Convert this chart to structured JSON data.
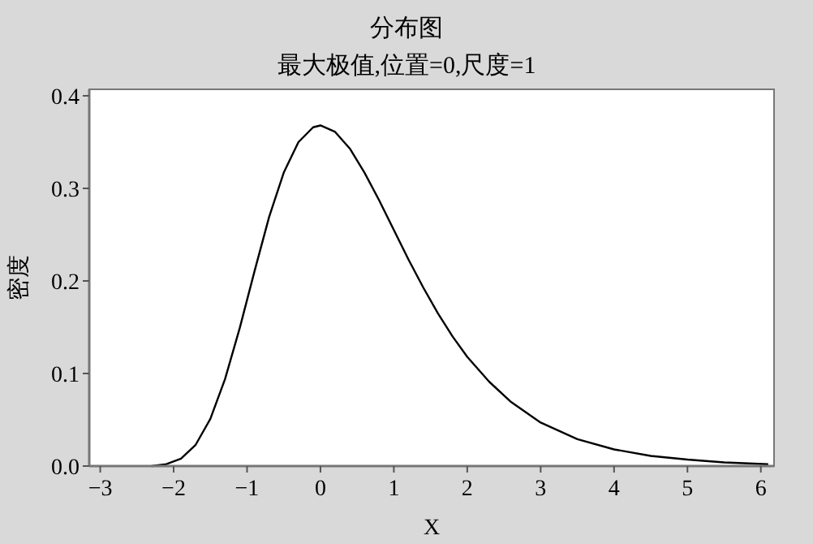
{
  "chart_data": {
    "type": "line",
    "title": "分布图",
    "subtitle": "最大极值,位置=0,尺度=1",
    "xlabel": "X",
    "ylabel": "密度",
    "x": [
      -2.3,
      -2.1,
      -1.9,
      -1.7,
      -1.5,
      -1.3,
      -1.1,
      -0.9,
      -0.7,
      -0.5,
      -0.3,
      -0.1,
      0,
      0.2,
      0.4,
      0.6,
      0.8,
      1.0,
      1.2,
      1.4,
      1.6,
      1.8,
      2.0,
      2.3,
      2.6,
      3.0,
      3.5,
      4.0,
      4.5,
      5.0,
      5.5,
      6.1
    ],
    "series": [
      {
        "color": "#000000",
        "values": [
          0.0,
          0.002,
          0.008,
          0.023,
          0.051,
          0.094,
          0.149,
          0.21,
          0.269,
          0.317,
          0.35,
          0.366,
          0.368,
          0.361,
          0.343,
          0.317,
          0.287,
          0.255,
          0.223,
          0.193,
          0.165,
          0.14,
          0.118,
          0.091,
          0.069,
          0.047,
          0.029,
          0.018,
          0.011,
          0.007,
          0.004,
          0.002
        ]
      }
    ],
    "xlim": [
      -3.15,
      6.18
    ],
    "ylim": [
      0,
      0.407
    ],
    "xticks": [
      {
        "value": -3,
        "label": "−3"
      },
      {
        "value": -2,
        "label": "−2"
      },
      {
        "value": -1,
        "label": "−1"
      },
      0,
      1,
      2,
      3,
      4,
      5,
      6
    ],
    "yticks": [
      {
        "value": 0,
        "label": "0.0"
      },
      0.1,
      0.2,
      0.3,
      0.4
    ],
    "grid": false,
    "marker": "none",
    "line_style": "solid"
  }
}
